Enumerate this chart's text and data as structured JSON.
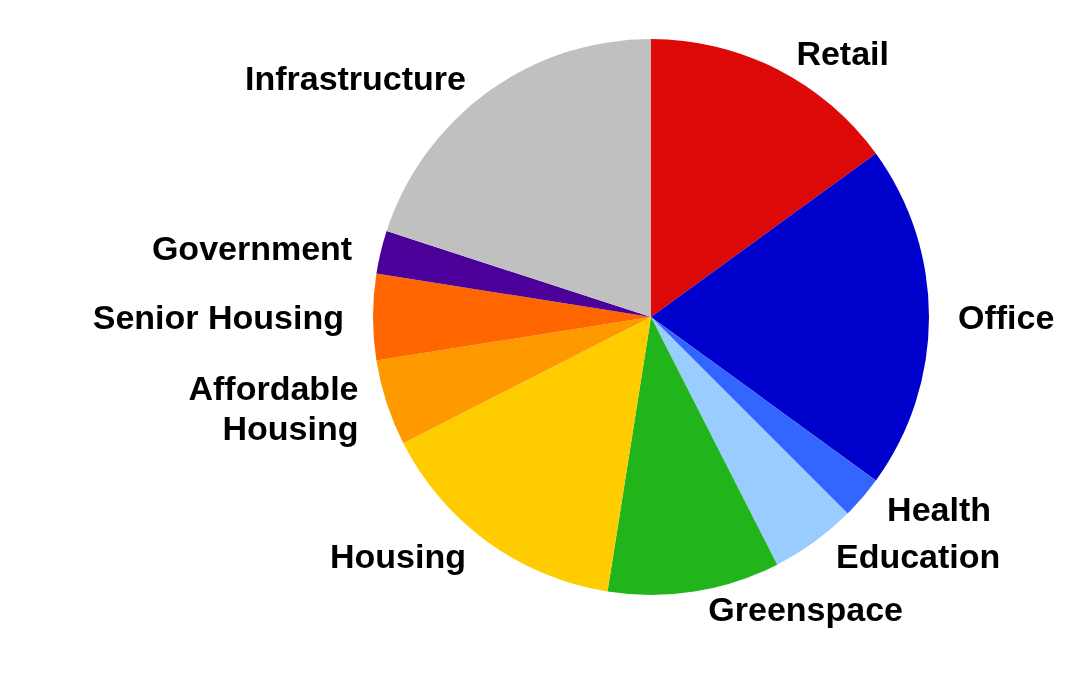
{
  "chart_data": {
    "type": "pie",
    "categories": [
      "Retail",
      "Office",
      "Health",
      "Education",
      "Greenspace",
      "Housing",
      "Affordable Housing",
      "Senior Housing",
      "Government",
      "Infrastructure"
    ],
    "values": [
      15,
      20,
      2.5,
      5,
      10,
      15,
      5,
      5,
      2.5,
      20
    ],
    "colors": [
      "#dd0808",
      "#0000cc",
      "#3366ff",
      "#99ccff",
      "#22b51b",
      "#ffcc00",
      "#ff9900",
      "#ff6600",
      "#4b0099",
      "#c0c0c0"
    ],
    "legend": false
  }
}
